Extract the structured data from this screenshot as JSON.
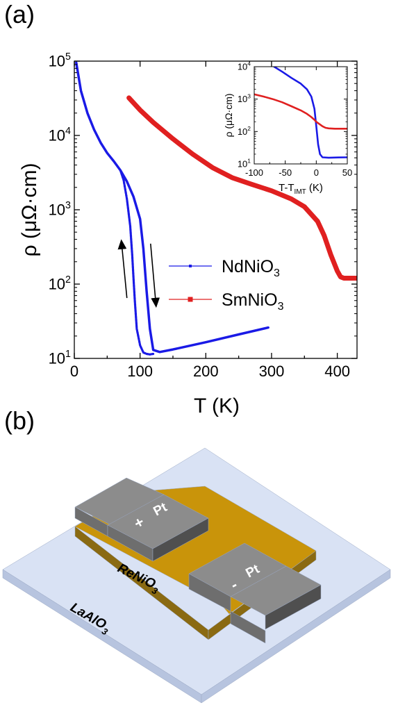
{
  "panel_a_label": "(a)",
  "panel_b_label": "(b)",
  "chart_data": [
    {
      "type": "line",
      "xlabel": "T (K)",
      "ylabel": "ρ (μΩ·cm)",
      "xlim": [
        0,
        430
      ],
      "ylim_log10": [
        1,
        5
      ],
      "x_ticks": [
        0,
        100,
        200,
        300,
        400
      ],
      "y_ticks": [
        {
          "value": 10,
          "base": "10",
          "exp": "1"
        },
        {
          "value": 100,
          "base": "10",
          "exp": "2"
        },
        {
          "value": 1000,
          "base": "10",
          "exp": "3"
        },
        {
          "value": 10000,
          "base": "10",
          "exp": "4"
        },
        {
          "value": 100000,
          "base": "10",
          "exp": "5"
        }
      ],
      "legend": {
        "placement": "center-right",
        "entries": [
          {
            "name": "NdNiO",
            "sub": "3",
            "color": "#1a1ae6",
            "marker": "small-square"
          },
          {
            "name": "SmNiO",
            "sub": "3",
            "color": "#e02020",
            "marker": "square"
          }
        ]
      },
      "annotations": [
        "up-arrow (heating branch at ~75 K)",
        "down-arrow (cooling branch at ~125 K)"
      ],
      "series": [
        {
          "name": "NdNiO3",
          "color": "#1a1ae6",
          "branches": [
            {
              "x": [
                3,
                10,
                20,
                30,
                40,
                50,
                60,
                70,
                80,
                90,
                100,
                105,
                110,
                115,
                120,
                130,
                150,
                200,
                250,
                295
              ],
              "y": [
                95000,
                40000,
                20000,
                12000,
                8000,
                5800,
                4500,
                3400,
                2400,
                1500,
                750,
                300,
                80,
                25,
                13,
                12.2,
                13.2,
                16.5,
                21,
                26
              ]
            },
            {
              "x": [
                70,
                75,
                80,
                85,
                88,
                90,
                92,
                95,
                100,
                105,
                110,
                115,
                120
              ],
              "y": [
                3400,
                2500,
                1400,
                600,
                250,
                120,
                60,
                25,
                15,
                12,
                11.5,
                11.3,
                11.5
              ]
            }
          ]
        },
        {
          "name": "SmNiO3",
          "color": "#e02020",
          "branches": [
            {
              "x": [
                83,
                100,
                120,
                150,
                180,
                210,
                240,
                270,
                300,
                330,
                350,
                370,
                380,
                390,
                400,
                405,
                410,
                420,
                430
              ],
              "y": [
                32000,
                22000,
                15000,
                9000,
                5600,
                3700,
                2700,
                2200,
                1800,
                1400,
                1100,
                700,
                450,
                250,
                150,
                125,
                120,
                120,
                120
              ]
            }
          ]
        }
      ]
    },
    {
      "type": "line",
      "title": "inset",
      "xlabel": "T-T",
      "xlabel_sub": "IMT",
      "xlabel_unit": "(K)",
      "ylabel": "ρ (μΩ·cm)",
      "xlim": [
        -100,
        50
      ],
      "ylim_log10": [
        1,
        4
      ],
      "x_ticks": [
        -100,
        -50,
        0,
        50
      ],
      "y_ticks": [
        {
          "value": 10,
          "base": "10",
          "exp": "1"
        },
        {
          "value": 100,
          "base": "10",
          "exp": "2"
        },
        {
          "value": 1000,
          "base": "10",
          "exp": "3"
        },
        {
          "value": 10000,
          "base": "10",
          "exp": "4"
        }
      ],
      "series": [
        {
          "name": "NdNiO3",
          "color": "#1a1ae6",
          "x": [
            -68,
            -55,
            -40,
            -25,
            -15,
            -8,
            -3,
            0,
            3,
            6,
            10,
            20,
            35,
            50
          ],
          "y": [
            10000,
            7000,
            4500,
            3000,
            2000,
            1200,
            500,
            150,
            40,
            20,
            16,
            15.5,
            15.8,
            16
          ]
        },
        {
          "name": "SmNiO3",
          "color": "#e02020",
          "x": [
            -100,
            -85,
            -70,
            -55,
            -40,
            -25,
            -15,
            -8,
            -3,
            0,
            5,
            10,
            15,
            20,
            30,
            50
          ],
          "y": [
            1400,
            1200,
            1000,
            800,
            600,
            450,
            350,
            280,
            230,
            200,
            170,
            145,
            130,
            125,
            122,
            122
          ]
        }
      ]
    }
  ],
  "device": {
    "substrate_label": "LaAlO",
    "substrate_sub": "3",
    "film_label": "ReNiO",
    "film_sub": "3",
    "electrode_plus_label": "Pt",
    "electrode_plus_sign": "+",
    "electrode_minus_label": "Pt",
    "electrode_minus_sign": "-",
    "colors": {
      "substrate_top": "#d9e2f4",
      "substrate_side": "#b7c4df",
      "film_top": "#c9940a",
      "film_side": "#8a6a12",
      "pt_top": "#8c8c8c",
      "pt_side_light": "#6e6e6e",
      "pt_side_dark": "#4f4f4f"
    }
  }
}
